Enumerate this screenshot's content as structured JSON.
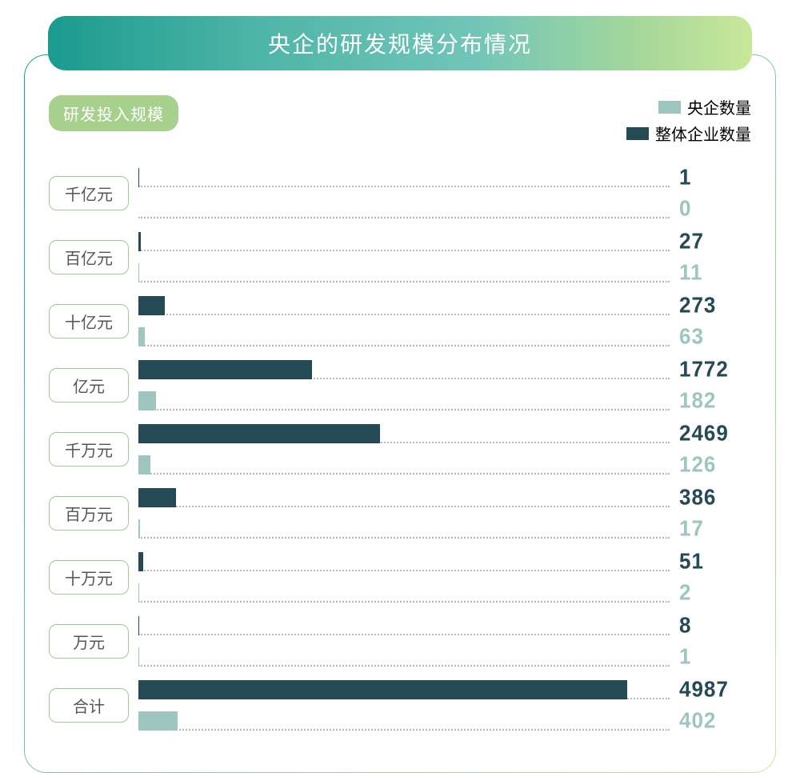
{
  "title": "央企的研发规模分布情况",
  "axis_label": "研发投入规模",
  "legend": {
    "series_b": {
      "label": "央企数量",
      "color": "#9ec5be"
    },
    "series_a": {
      "label": "整体企业数量",
      "color": "#234a55"
    }
  },
  "colors": {
    "bar_a": "#234a55",
    "bar_b": "#9ec5be",
    "val_a": "#234a55",
    "val_b": "#9ec5be",
    "cat_border": "#9ec99a",
    "pill_bg": "#a6d08c",
    "dotted": "#b9b9b9"
  },
  "chart": {
    "max_value": 4987,
    "track_pct_of_full": 0.92
  },
  "categories": [
    {
      "name": "千亿元",
      "a": 1,
      "b": 0
    },
    {
      "name": "百亿元",
      "a": 27,
      "b": 11
    },
    {
      "name": "十亿元",
      "a": 273,
      "b": 63
    },
    {
      "name": "亿元",
      "a": 1772,
      "b": 182
    },
    {
      "name": "千万元",
      "a": 2469,
      "b": 126
    },
    {
      "name": "百万元",
      "a": 386,
      "b": 17
    },
    {
      "name": "十万元",
      "a": 51,
      "b": 2
    },
    {
      "name": "万元",
      "a": 8,
      "b": 1
    },
    {
      "name": "合计",
      "a": 4987,
      "b": 402
    }
  ]
}
